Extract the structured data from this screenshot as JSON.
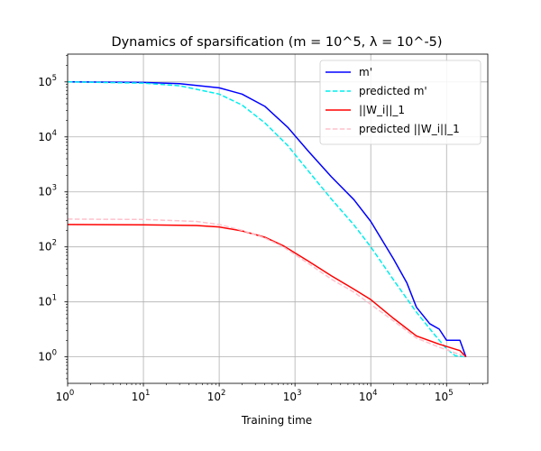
{
  "chart_data": {
    "type": "line",
    "title": "Dynamics of sparsification (m = 10^5, λ = 10^-5)",
    "xlabel": "Training time",
    "ylabel": "",
    "xscale": "log",
    "yscale": "log",
    "xlim": [
      1,
      350000
    ],
    "ylim": [
      0.33,
      320000
    ],
    "grid": true,
    "legend_position": "top-right",
    "x_ticks": [
      {
        "base": "10",
        "exp": "0",
        "value": 1
      },
      {
        "base": "10",
        "exp": "1",
        "value": 10
      },
      {
        "base": "10",
        "exp": "2",
        "value": 100
      },
      {
        "base": "10",
        "exp": "3",
        "value": 1000
      },
      {
        "base": "10",
        "exp": "4",
        "value": 10000
      },
      {
        "base": "10",
        "exp": "5",
        "value": 100000
      }
    ],
    "y_ticks": [
      {
        "base": "10",
        "exp": "0",
        "value": 1
      },
      {
        "base": "10",
        "exp": "1",
        "value": 10
      },
      {
        "base": "10",
        "exp": "2",
        "value": 100
      },
      {
        "base": "10",
        "exp": "3",
        "value": 1000
      },
      {
        "base": "10",
        "exp": "4",
        "value": 10000
      },
      {
        "base": "10",
        "exp": "5",
        "value": 100000
      }
    ],
    "series": [
      {
        "name": "m'",
        "color": "#0000ff",
        "dash": "solid",
        "points": [
          [
            1,
            100000
          ],
          [
            10,
            98000
          ],
          [
            30,
            93000
          ],
          [
            100,
            78000
          ],
          [
            200,
            60000
          ],
          [
            400,
            36000
          ],
          [
            800,
            15000
          ],
          [
            1500,
            5500
          ],
          [
            3000,
            1900
          ],
          [
            6000,
            720
          ],
          [
            10000,
            290
          ],
          [
            20000,
            60
          ],
          [
            30000,
            22
          ],
          [
            40000,
            8
          ],
          [
            60000,
            4
          ],
          [
            80000,
            3.2
          ],
          [
            100000,
            2
          ],
          [
            150000,
            2
          ],
          [
            180000,
            1
          ]
        ]
      },
      {
        "name": "predicted m'",
        "color": "#00eeee",
        "dash": "dashed",
        "points": [
          [
            1,
            100000
          ],
          [
            10,
            95000
          ],
          [
            30,
            85000
          ],
          [
            100,
            60000
          ],
          [
            200,
            38000
          ],
          [
            400,
            18000
          ],
          [
            800,
            7000
          ],
          [
            1500,
            2400
          ],
          [
            3000,
            750
          ],
          [
            6000,
            250
          ],
          [
            10000,
            100
          ],
          [
            20000,
            25
          ],
          [
            40000,
            6.5
          ],
          [
            70000,
            2.5
          ],
          [
            100000,
            1.4
          ],
          [
            130000,
            1.05
          ],
          [
            180000,
            1
          ]
        ]
      },
      {
        "name": "||W_i||_1",
        "color": "#ff0000",
        "dash": "solid",
        "points": [
          [
            1,
            255
          ],
          [
            10,
            252
          ],
          [
            50,
            245
          ],
          [
            100,
            230
          ],
          [
            200,
            195
          ],
          [
            400,
            150
          ],
          [
            700,
            105
          ],
          [
            1500,
            55
          ],
          [
            3000,
            30
          ],
          [
            6000,
            17
          ],
          [
            10000,
            11
          ],
          [
            20000,
            5
          ],
          [
            40000,
            2.4
          ],
          [
            80000,
            1.7
          ],
          [
            150000,
            1.3
          ],
          [
            180000,
            1
          ]
        ]
      },
      {
        "name": "predicted ||W_i||_1",
        "color": "#ffc0cb",
        "dash": "dashed",
        "points": [
          [
            1,
            320
          ],
          [
            10,
            315
          ],
          [
            50,
            290
          ],
          [
            100,
            255
          ],
          [
            200,
            200
          ],
          [
            400,
            145
          ],
          [
            700,
            100
          ],
          [
            1500,
            50
          ],
          [
            3000,
            26
          ],
          [
            6000,
            15
          ],
          [
            10000,
            9
          ],
          [
            20000,
            4.5
          ],
          [
            40000,
            2.2
          ],
          [
            80000,
            1.5
          ],
          [
            150000,
            1.1
          ],
          [
            180000,
            1
          ]
        ]
      }
    ]
  }
}
